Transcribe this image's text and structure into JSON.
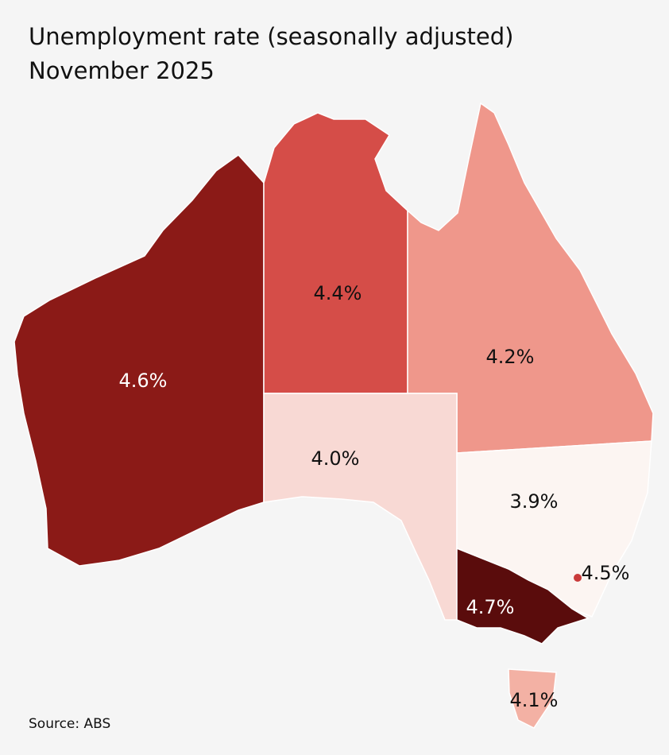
{
  "chart_data": {
    "type": "map",
    "title": "Unemployment rate (seasonally adjusted)",
    "subtitle": "November 2025",
    "source": "Source: ABS",
    "values": [
      4.6,
      4.4,
      4.2,
      4.0,
      3.9,
      4.7,
      4.5,
      4.1
    ],
    "value_labels": [
      "4.6%",
      "4.4%",
      "4.2%",
      "4.0%",
      "3.9%",
      "4.7%",
      "4.5%",
      "4.1%"
    ],
    "colors": [
      "#8b1a17",
      "#d54d48",
      "#ef978b",
      "#f8d9d4",
      "#fcf5f2",
      "#5a0c0c",
      "#c93a3a",
      "#f3b1a4"
    ]
  }
}
